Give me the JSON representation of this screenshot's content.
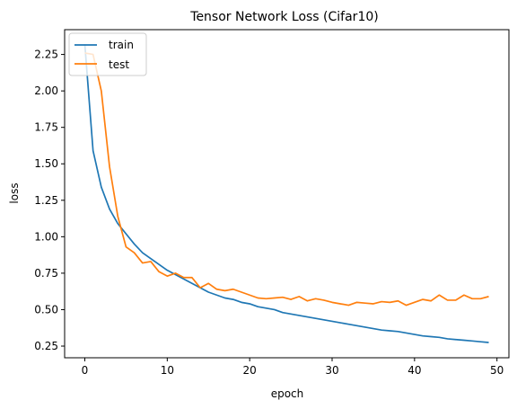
{
  "chart_data": {
    "type": "line",
    "title": "Tensor Network Loss (Cifar10)",
    "xlabel": "epoch",
    "ylabel": "loss",
    "xlim": [
      -2.45,
      51.45
    ],
    "ylim": [
      0.17,
      2.42
    ],
    "xticks": [
      0,
      10,
      20,
      30,
      40,
      50
    ],
    "yticks": [
      0.25,
      0.5,
      0.75,
      1.0,
      1.25,
      1.5,
      1.75,
      2.0,
      2.25
    ],
    "ytick_labels": [
      "0.25",
      "0.50",
      "0.75",
      "1.00",
      "1.25",
      "1.50",
      "1.75",
      "2.00",
      "2.25"
    ],
    "xtick_labels": [
      "0",
      "10",
      "20",
      "30",
      "40",
      "50"
    ],
    "legend_position": "top-left",
    "grid": false,
    "x": [
      0,
      1,
      2,
      3,
      4,
      5,
      6,
      7,
      8,
      9,
      10,
      11,
      12,
      13,
      14,
      15,
      16,
      17,
      18,
      19,
      20,
      21,
      22,
      23,
      24,
      25,
      26,
      27,
      28,
      29,
      30,
      31,
      32,
      33,
      34,
      35,
      36,
      37,
      38,
      39,
      40,
      41,
      42,
      43,
      44,
      45,
      46,
      47,
      48,
      49
    ],
    "series": [
      {
        "name": "train",
        "color": "#1f77b4",
        "values": [
          2.32,
          1.59,
          1.34,
          1.19,
          1.09,
          1.02,
          0.95,
          0.89,
          0.85,
          0.81,
          0.77,
          0.74,
          0.71,
          0.68,
          0.65,
          0.62,
          0.6,
          0.58,
          0.57,
          0.55,
          0.54,
          0.52,
          0.51,
          0.5,
          0.48,
          0.47,
          0.46,
          0.45,
          0.44,
          0.43,
          0.42,
          0.41,
          0.4,
          0.39,
          0.38,
          0.37,
          0.36,
          0.355,
          0.35,
          0.34,
          0.33,
          0.32,
          0.315,
          0.31,
          0.3,
          0.295,
          0.29,
          0.285,
          0.28,
          0.275
        ]
      },
      {
        "name": "test",
        "color": "#ff7f0e",
        "values": [
          2.26,
          2.25,
          2.0,
          1.48,
          1.14,
          0.93,
          0.89,
          0.82,
          0.83,
          0.76,
          0.73,
          0.75,
          0.72,
          0.72,
          0.65,
          0.68,
          0.64,
          0.63,
          0.64,
          0.62,
          0.6,
          0.58,
          0.575,
          0.58,
          0.585,
          0.57,
          0.59,
          0.56,
          0.575,
          0.565,
          0.55,
          0.54,
          0.53,
          0.55,
          0.545,
          0.54,
          0.555,
          0.55,
          0.56,
          0.53,
          0.55,
          0.57,
          0.56,
          0.6,
          0.565,
          0.565,
          0.6,
          0.575,
          0.575,
          0.59
        ]
      }
    ]
  }
}
